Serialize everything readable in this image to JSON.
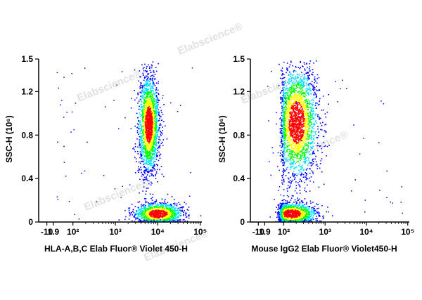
{
  "chart_data": [
    {
      "type": "scatter",
      "title": "",
      "xlabel": "HLA-A,B,C Elab Fluor® Violet 450-H",
      "ylabel": "SSC-H (10⁶)",
      "x_scale": "biexponential",
      "x_ticks": [
        "-10",
        "1.9",
        "10²",
        "10³",
        "10⁴",
        "10⁵"
      ],
      "y_ticks": [
        "0",
        "0.4",
        "0.8",
        "1.2",
        "1.5"
      ],
      "ylim": [
        0,
        1.5
      ],
      "populations": [
        {
          "x_center": 6000,
          "y_center": 0.9,
          "x_spread_log": 0.12,
          "y_spread": 0.22,
          "points": 2000
        },
        {
          "x_center": 10000,
          "y_center": 0.08,
          "x_spread_log": 0.28,
          "y_spread": 0.05,
          "points": 1200
        }
      ]
    },
    {
      "type": "scatter",
      "title": "",
      "xlabel": "Mouse IgG2 Elab Fluor® Violet450-H",
      "ylabel": "SSC-H (10⁶)",
      "x_scale": "biexponential",
      "x_ticks": [
        "-10",
        "1.9",
        "10²",
        "10³",
        "10⁴",
        "10⁵"
      ],
      "y_ticks": [
        "0",
        "0.4",
        "0.8",
        "1.2",
        "1.5"
      ],
      "ylim": [
        0,
        1.5
      ],
      "populations": [
        {
          "x_center": 200,
          "y_center": 0.92,
          "x_spread_log": 0.25,
          "y_spread": 0.25,
          "points": 2400
        },
        {
          "x_center": 150,
          "y_center": 0.08,
          "x_spread_log": 0.3,
          "y_spread": 0.05,
          "points": 1300
        }
      ]
    }
  ],
  "watermark": "Elabscience®",
  "colors": {
    "density_low": "#0000ff",
    "density_mid": "#00e0ff",
    "density_midhigh": "#00ff00",
    "density_high": "#ffff00",
    "density_peak": "#ff0000"
  }
}
